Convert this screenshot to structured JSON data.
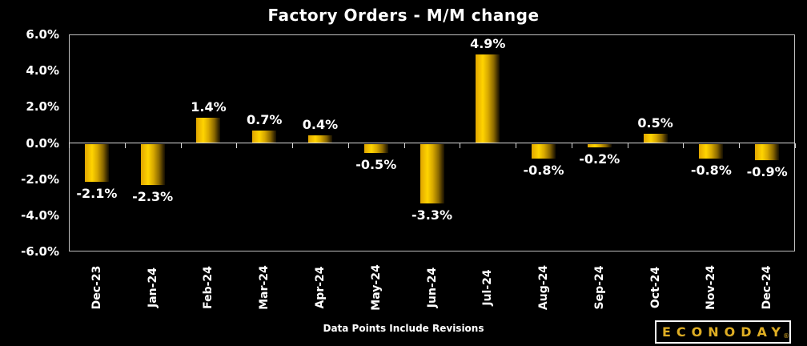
{
  "title": "Factory Orders - M/M change",
  "footer": "Data Points Include Revisions",
  "logo": {
    "text": "ECONODAY",
    "registered": "®"
  },
  "colors": {
    "background": "#000000",
    "text": "#ffffff",
    "axis_line": "#d9d9d9",
    "plot_border": "#bfbfbf",
    "bar_gold_bright": "#ffd400",
    "bar_gold_dark": "#171000",
    "logo_gold": "#dfae24"
  },
  "chart_data": {
    "type": "bar",
    "title": "Factory Orders - M/M change",
    "categories": [
      "Dec-23",
      "Jan-24",
      "Feb-24",
      "Mar-24",
      "Apr-24",
      "May-24",
      "Jun-24",
      "Jul-24",
      "Aug-24",
      "Sep-24",
      "Oct-24",
      "Nov-24",
      "Dec-24"
    ],
    "values": [
      -2.1,
      -2.3,
      1.4,
      0.7,
      0.4,
      -0.5,
      -3.3,
      4.9,
      -0.8,
      -0.2,
      0.5,
      -0.8,
      -0.9
    ],
    "value_labels": [
      "-2.1%",
      "-2.3%",
      "1.4%",
      "0.7%",
      "0.4%",
      "-0.5%",
      "-3.3%",
      "4.9%",
      "-0.8%",
      "-0.2%",
      "0.5%",
      "-0.8%",
      "-0.9%"
    ],
    "xlabel": "",
    "ylabel": "",
    "ylim": [
      -6,
      6
    ],
    "yticks": [
      {
        "label": "6.0%",
        "value": 6
      },
      {
        "label": "4.0%",
        "value": 4
      },
      {
        "label": "2.0%",
        "value": 2
      },
      {
        "label": "0.0%",
        "value": 0
      },
      {
        "label": "-2.0%",
        "value": -2
      },
      {
        "label": "-4.0%",
        "value": -4
      },
      {
        "label": "-6.0%",
        "value": -6
      }
    ],
    "grid": "zero-line-only",
    "legend": "none",
    "footnote": "Data Points Include Revisions"
  }
}
